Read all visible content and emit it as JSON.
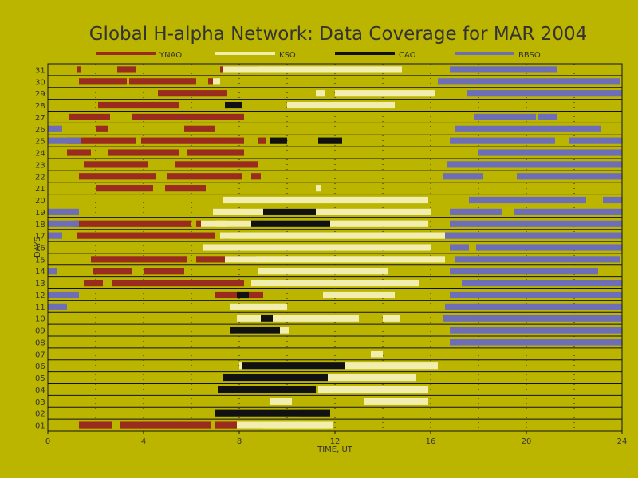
{
  "chart_data": {
    "type": "bar",
    "title": "Global H-alpha Network: Data Coverage for MAR 2004",
    "xlabel": "TIME, UT",
    "ylabel": "DAYS",
    "xlim": [
      0,
      24
    ],
    "x_ticks": [
      "0",
      "4",
      "8",
      "12",
      "16",
      "20",
      "24"
    ],
    "y_ticks": [
      "01",
      "02",
      "03",
      "04",
      "05",
      "06",
      "07",
      "08",
      "09",
      "10",
      "11",
      "12",
      "13",
      "14",
      "15",
      "16",
      "17",
      "18",
      "19",
      "20",
      "21",
      "22",
      "23",
      "24",
      "25",
      "26",
      "27",
      "28",
      "29",
      "30",
      "31"
    ],
    "grid": true,
    "legend_position": "top",
    "series": [
      {
        "name": "YNAO",
        "color": "#9a2b1f",
        "intervals": [
          [
            1,
            [
              [
                1.3,
                2.7
              ],
              [
                3.0,
                6.8
              ],
              [
                7.0,
                9.0
              ]
            ]
          ],
          [
            12,
            [
              [
                7.0,
                8.0
              ],
              [
                8.3,
                9.0
              ]
            ]
          ],
          [
            13,
            [
              [
                1.5,
                2.3
              ],
              [
                2.7,
                8.2
              ]
            ]
          ],
          [
            14,
            [
              [
                1.9,
                3.5
              ],
              [
                4.0,
                5.7
              ]
            ]
          ],
          [
            15,
            [
              [
                1.8,
                5.8
              ],
              [
                6.2,
                8.7
              ]
            ]
          ],
          [
            17,
            [
              [
                1.2,
                7.0
              ],
              [
                7.3,
                7.6
              ]
            ]
          ],
          [
            18,
            [
              [
                1.1,
                6.0
              ],
              [
                6.2,
                7.0
              ],
              [
                7.5,
                8.9
              ]
            ]
          ],
          [
            21,
            [
              [
                2.0,
                4.4
              ],
              [
                4.9,
                6.6
              ]
            ]
          ],
          [
            22,
            [
              [
                1.3,
                4.5
              ],
              [
                5.0,
                8.1
              ],
              [
                8.5,
                8.9
              ]
            ]
          ],
          [
            23,
            [
              [
                1.5,
                4.2
              ],
              [
                5.3,
                8.8
              ]
            ]
          ],
          [
            24,
            [
              [
                0.8,
                1.8
              ],
              [
                2.5,
                5.5
              ],
              [
                5.8,
                8.2
              ]
            ]
          ],
          [
            25,
            [
              [
                0.8,
                3.7
              ],
              [
                3.9,
                8.2
              ],
              [
                8.8,
                9.1
              ]
            ]
          ],
          [
            26,
            [
              [
                2.0,
                2.5
              ],
              [
                5.7,
                7.0
              ]
            ]
          ],
          [
            27,
            [
              [
                0.9,
                2.6
              ],
              [
                3.5,
                8.2
              ]
            ]
          ],
          [
            28,
            [
              [
                2.1,
                5.5
              ]
            ]
          ],
          [
            29,
            [
              [
                4.6,
                7.5
              ]
            ]
          ],
          [
            30,
            [
              [
                1.3,
                3.3
              ],
              [
                3.4,
                6.2
              ],
              [
                6.7,
                6.9
              ]
            ]
          ],
          [
            31,
            [
              [
                1.2,
                1.4
              ],
              [
                2.9,
                3.7
              ],
              [
                7.2,
                8.8
              ]
            ]
          ]
        ]
      },
      {
        "name": "KSO",
        "color": "#f2eeb0",
        "intervals": [
          [
            1,
            [
              [
                7.9,
                11.9
              ]
            ]
          ],
          [
            2,
            [
              [
                7.8,
                10.5
              ]
            ]
          ],
          [
            3,
            [
              [
                9.3,
                10.2
              ],
              [
                13.2,
                15.9
              ]
            ]
          ],
          [
            4,
            [
              [
                11.3,
                15.9
              ]
            ]
          ],
          [
            5,
            [
              [
                7.3,
                15.4
              ]
            ]
          ],
          [
            6,
            [
              [
                8.0,
                16.3
              ]
            ]
          ],
          [
            7,
            [
              [
                13.5,
                14.0
              ]
            ]
          ],
          [
            9,
            [
              [
                7.8,
                10.1
              ]
            ]
          ],
          [
            10,
            [
              [
                7.9,
                13.0
              ],
              [
                14.0,
                14.7
              ]
            ]
          ],
          [
            11,
            [
              [
                7.6,
                10.0
              ]
            ]
          ],
          [
            12,
            [
              [
                11.5,
                14.5
              ]
            ]
          ],
          [
            13,
            [
              [
                8.5,
                15.5
              ]
            ]
          ],
          [
            14,
            [
              [
                8.8,
                14.2
              ]
            ]
          ],
          [
            15,
            [
              [
                7.4,
                16.6
              ]
            ]
          ],
          [
            16,
            [
              [
                6.5,
                16.0
              ]
            ]
          ],
          [
            17,
            [
              [
                7.2,
                16.6
              ]
            ]
          ],
          [
            18,
            [
              [
                6.4,
                15.9
              ]
            ]
          ],
          [
            19,
            [
              [
                6.9,
                16.0
              ]
            ]
          ],
          [
            20,
            [
              [
                7.3,
                15.9
              ]
            ]
          ],
          [
            21,
            [
              [
                11.2,
                11.4
              ]
            ]
          ],
          [
            28,
            [
              [
                7.5,
                8.0
              ],
              [
                10.0,
                14.5
              ]
            ]
          ],
          [
            29,
            [
              [
                11.2,
                11.6
              ],
              [
                12.0,
                16.2
              ]
            ]
          ],
          [
            30,
            [
              [
                6.9,
                7.2
              ]
            ]
          ],
          [
            31,
            [
              [
                7.3,
                14.8
              ]
            ]
          ]
        ]
      },
      {
        "name": "CAO",
        "color": "#111111",
        "intervals": [
          [
            2,
            [
              [
                7.0,
                11.8
              ]
            ]
          ],
          [
            4,
            [
              [
                7.1,
                11.2
              ]
            ]
          ],
          [
            5,
            [
              [
                7.3,
                11.7
              ]
            ]
          ],
          [
            6,
            [
              [
                8.1,
                12.4
              ]
            ]
          ],
          [
            9,
            [
              [
                7.6,
                9.7
              ]
            ]
          ],
          [
            10,
            [
              [
                8.9,
                9.4
              ]
            ]
          ],
          [
            12,
            [
              [
                7.9,
                8.4
              ]
            ]
          ],
          [
            18,
            [
              [
                8.5,
                11.8
              ]
            ]
          ],
          [
            19,
            [
              [
                9.0,
                11.2
              ]
            ]
          ],
          [
            25,
            [
              [
                9.3,
                10.0
              ],
              [
                11.3,
                12.3
              ]
            ]
          ],
          [
            28,
            [
              [
                7.4,
                8.1
              ]
            ]
          ]
        ]
      },
      {
        "name": "BBSO",
        "color": "#6e6eb8",
        "intervals": [
          [
            8,
            [
              [
                16.8,
                24.0
              ]
            ]
          ],
          [
            9,
            [
              [
                16.8,
                24.0
              ]
            ]
          ],
          [
            10,
            [
              [
                16.5,
                24.0
              ]
            ]
          ],
          [
            11,
            [
              [
                0.0,
                0.8
              ],
              [
                16.6,
                24.0
              ]
            ]
          ],
          [
            12,
            [
              [
                0.0,
                1.3
              ],
              [
                16.8,
                24.0
              ]
            ]
          ],
          [
            13,
            [
              [
                17.3,
                24.0
              ]
            ]
          ],
          [
            14,
            [
              [
                0.0,
                0.4
              ],
              [
                16.8,
                23.0
              ]
            ]
          ],
          [
            15,
            [
              [
                17.0,
                23.9
              ]
            ]
          ],
          [
            16,
            [
              [
                16.8,
                17.6
              ],
              [
                17.9,
                24.0
              ]
            ]
          ],
          [
            17,
            [
              [
                0.0,
                0.6
              ],
              [
                16.6,
                24.0
              ]
            ]
          ],
          [
            18,
            [
              [
                0.0,
                1.3
              ],
              [
                16.8,
                24.0
              ]
            ]
          ],
          [
            19,
            [
              [
                0.0,
                1.3
              ],
              [
                16.8,
                19.0
              ],
              [
                19.5,
                24.0
              ]
            ]
          ],
          [
            20,
            [
              [
                17.6,
                22.5
              ],
              [
                23.2,
                24.0
              ]
            ]
          ],
          [
            22,
            [
              [
                16.5,
                18.2
              ],
              [
                19.6,
                24.0
              ]
            ]
          ],
          [
            23,
            [
              [
                16.7,
                24.0
              ]
            ]
          ],
          [
            24,
            [
              [
                18.0,
                24.0
              ]
            ]
          ],
          [
            25,
            [
              [
                0.0,
                1.4
              ],
              [
                16.8,
                21.2
              ],
              [
                21.8,
                24.0
              ]
            ]
          ],
          [
            26,
            [
              [
                0.0,
                0.6
              ],
              [
                17.0,
                23.1
              ]
            ]
          ],
          [
            27,
            [
              [
                17.8,
                20.4
              ],
              [
                20.5,
                21.3
              ]
            ]
          ],
          [
            29,
            [
              [
                17.5,
                24.0
              ]
            ]
          ],
          [
            30,
            [
              [
                16.3,
                23.9
              ]
            ]
          ],
          [
            31,
            [
              [
                16.8,
                21.3
              ]
            ]
          ]
        ]
      }
    ]
  }
}
